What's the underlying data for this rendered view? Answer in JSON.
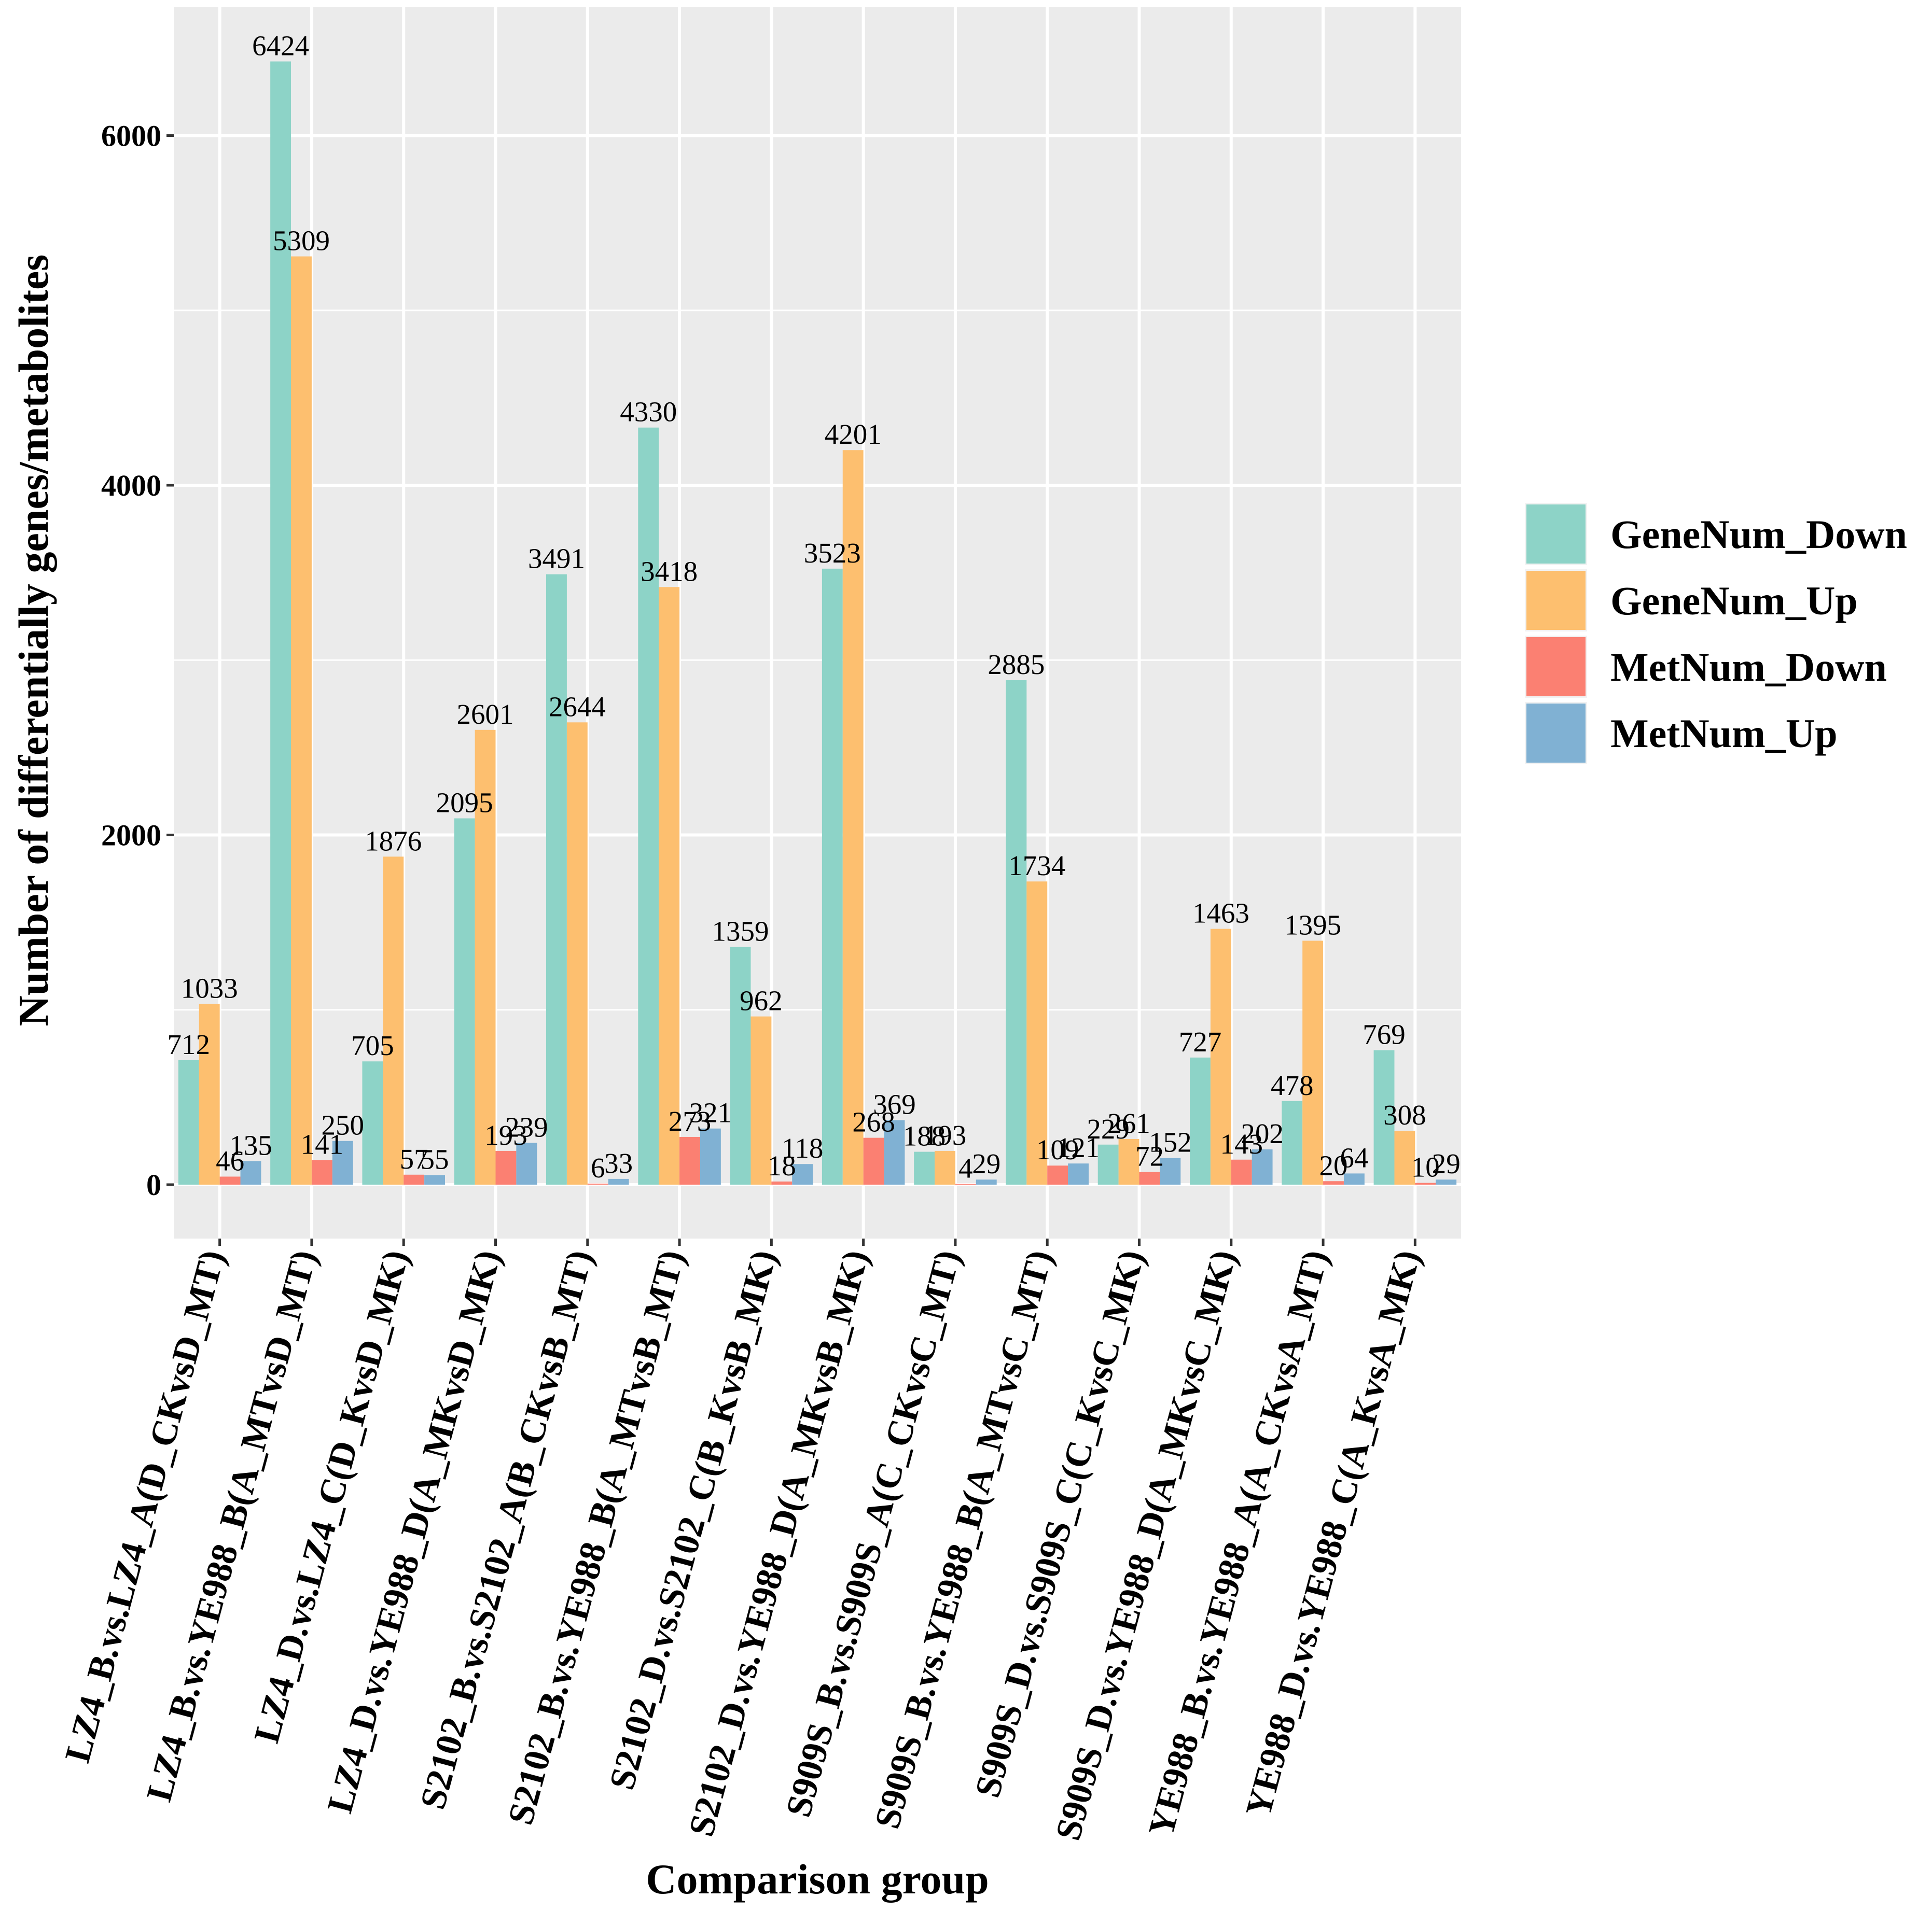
{
  "chart_data": {
    "type": "bar",
    "title": "",
    "xlabel": "Comparison group",
    "ylabel": "Number of differentially genes/metabolites",
    "ylim": [
      0,
      6700
    ],
    "yticks": [
      0,
      2000,
      4000,
      6000
    ],
    "grid": true,
    "legend_position": "right",
    "categories": [
      "LZ4_B.vs.LZ4_A(D_CKvsD_MT)",
      "LZ4_B.vs.YE988_B(A_MTvsD_MT)",
      "LZ4_D.vs.LZ4_C(D_KvsD_MK)",
      "LZ4_D.vs.YE988_D(A_MKvsD_MK)",
      "S2102_B.vs.S2102_A(B_CKvsB_MT)",
      "S2102_B.vs.YE988_B(A_MTvsB_MT)",
      "S2102_D.vs.S2102_C(B_KvsB_MK)",
      "S2102_D.vs.YE988_D(A_MKvsB_MK)",
      "S909S_B.vs.S909S_A(C_CKvsC_MT)",
      "S909S_B.vs.YE988_B(A_MTvsC_MT)",
      "S909S_D.vs.S909S_C(C_KvsC_MK)",
      "S909S_D.vs.YE988_D(A_MKvsC_MK)",
      "YE988_B.vs.YE988_A(A_CKvsA_MT)",
      "YE988_D.vs.YE988_C(A_KvsA_MK)"
    ],
    "series": [
      {
        "name": "GeneNum_Down",
        "color": "#8DD3C7",
        "values": [
          712,
          6424,
          705,
          2095,
          3491,
          4330,
          1359,
          3523,
          188,
          2885,
          229,
          727,
          478,
          769
        ]
      },
      {
        "name": "GeneNum_Up",
        "color": "#FDBF6F",
        "values": [
          1033,
          5309,
          1876,
          2601,
          2644,
          3418,
          962,
          4201,
          193,
          1734,
          261,
          1463,
          1395,
          308
        ]
      },
      {
        "name": "MetNum_Down",
        "color": "#FB8072",
        "values": [
          46,
          141,
          57,
          193,
          6,
          273,
          18,
          268,
          4,
          109,
          72,
          143,
          20,
          10
        ]
      },
      {
        "name": "MetNum_Up",
        "color": "#80B1D3",
        "values": [
          135,
          250,
          55,
          239,
          33,
          321,
          118,
          369,
          29,
          121,
          152,
          202,
          64,
          29
        ]
      }
    ]
  },
  "style": {
    "panel_bg": "#EBEBEB",
    "grid_color": "#FFFFFF"
  }
}
